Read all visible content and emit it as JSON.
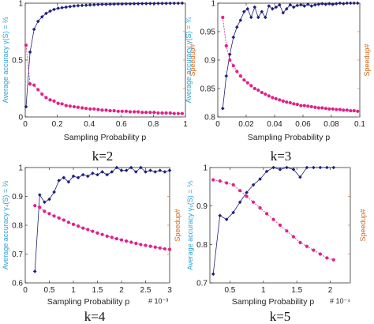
{
  "colors": {
    "accuracy": "#1f1f7a",
    "speedup": "#e0208a",
    "left_axis": "#2a9fd6",
    "right_axis": "#d2691e"
  },
  "chart_data": [
    {
      "type": "line",
      "caption": "k=2",
      "xlabel": "Sampling Probability p",
      "ylabel_left": "Average accuracy γ(S) = ⅔",
      "ylabel_right": "Speedup#",
      "x_exponent": "",
      "xlim": [
        0,
        1
      ],
      "ylim": [
        0,
        1
      ],
      "xticks": [
        0,
        0.2,
        0.4,
        0.6,
        0.8,
        1
      ],
      "xtick_labels": [
        "0",
        "0.2",
        "0.4",
        "0.6",
        "0.8",
        "1"
      ],
      "yticks": [
        0,
        0.5,
        1
      ],
      "ytick_labels": [
        "0",
        "0.5",
        "1"
      ],
      "series": [
        {
          "key": "accuracy",
          "x": [
            0.005,
            0.03,
            0.055,
            0.08,
            0.105,
            0.13,
            0.155,
            0.18,
            0.205,
            0.23,
            0.255,
            0.28,
            0.305,
            0.33,
            0.355,
            0.38,
            0.405,
            0.43,
            0.455,
            0.48,
            0.505,
            0.53,
            0.555,
            0.58,
            0.605,
            0.63,
            0.655,
            0.68,
            0.705,
            0.73,
            0.755,
            0.78,
            0.805,
            0.83,
            0.855,
            0.88,
            0.905,
            0.93,
            0.955,
            0.98
          ],
          "values": [
            0.09,
            0.57,
            0.77,
            0.84,
            0.88,
            0.91,
            0.93,
            0.945,
            0.955,
            0.96,
            0.965,
            0.97,
            0.975,
            0.978,
            0.98,
            0.982,
            0.984,
            0.986,
            0.988,
            0.99,
            0.99,
            0.991,
            0.992,
            0.993,
            0.993,
            0.994,
            0.994,
            0.995,
            0.995,
            0.996,
            0.996,
            0.997,
            0.997,
            0.998,
            0.998,
            0.998,
            0.999,
            0.999,
            0.999,
            1.0
          ]
        },
        {
          "key": "speedup",
          "x": [
            0.005,
            0.03,
            0.055,
            0.08,
            0.105,
            0.13,
            0.155,
            0.18,
            0.205,
            0.23,
            0.255,
            0.28,
            0.305,
            0.33,
            0.355,
            0.38,
            0.405,
            0.43,
            0.455,
            0.48,
            0.505,
            0.53,
            0.555,
            0.58,
            0.605,
            0.63,
            0.655,
            0.68,
            0.705,
            0.73,
            0.755,
            0.78,
            0.805,
            0.83,
            0.855,
            0.88,
            0.905,
            0.93,
            0.955,
            0.98
          ],
          "values": [
            0.63,
            0.29,
            0.28,
            0.24,
            0.2,
            0.17,
            0.15,
            0.14,
            0.12,
            0.115,
            0.1,
            0.095,
            0.09,
            0.085,
            0.08,
            0.075,
            0.07,
            0.07,
            0.065,
            0.06,
            0.06,
            0.055,
            0.055,
            0.05,
            0.05,
            0.05,
            0.045,
            0.045,
            0.045,
            0.04,
            0.04,
            0.04,
            0.04,
            0.035,
            0.035,
            0.035,
            0.035,
            0.03,
            0.03,
            0.03
          ]
        }
      ]
    },
    {
      "type": "line",
      "caption": "k=3",
      "xlabel": "Sampling Probability p",
      "ylabel_left": "Average accuracy γ(S) = ¾",
      "ylabel_right": "Speedup#",
      "x_exponent": "",
      "xlim": [
        0,
        0.1
      ],
      "ylim": [
        0.8,
        1
      ],
      "xticks": [
        0,
        0.02,
        0.04,
        0.06,
        0.08,
        0.1
      ],
      "xtick_labels": [
        "0",
        "0.02",
        "0.04",
        "0.06",
        "0.08",
        "0.1"
      ],
      "yticks": [
        0.8,
        0.85,
        0.9,
        0.95,
        1
      ],
      "ytick_labels": [
        "0.8",
        "0.85",
        "0.9",
        "0.95",
        "1"
      ],
      "series": [
        {
          "key": "accuracy",
          "x": [
            0.0035,
            0.006,
            0.0085,
            0.011,
            0.0135,
            0.016,
            0.0185,
            0.021,
            0.0235,
            0.026,
            0.0285,
            0.031,
            0.0335,
            0.036,
            0.0385,
            0.041,
            0.0435,
            0.046,
            0.0485,
            0.051,
            0.0535,
            0.056,
            0.0585,
            0.061,
            0.0635,
            0.066,
            0.0685,
            0.071,
            0.0735,
            0.076,
            0.0785,
            0.081,
            0.0835,
            0.086,
            0.0885,
            0.091,
            0.0935,
            0.096,
            0.0985
          ],
          "values": [
            0.815,
            0.872,
            0.91,
            0.94,
            0.958,
            0.97,
            0.985,
            0.99,
            0.975,
            0.993,
            0.975,
            0.985,
            0.975,
            0.995,
            0.99,
            0.993,
            0.997,
            0.983,
            0.99,
            0.997,
            0.993,
            0.996,
            0.997,
            0.995,
            0.998,
            0.995,
            0.997,
            0.998,
            0.999,
            0.998,
            0.999,
            0.998,
            0.999,
            1.0,
            0.999,
            1.0,
            1.0,
            1.0,
            1.0
          ]
        },
        {
          "key": "speedup",
          "x": [
            0.0035,
            0.006,
            0.0085,
            0.011,
            0.0135,
            0.016,
            0.0185,
            0.021,
            0.0235,
            0.026,
            0.0285,
            0.031,
            0.0335,
            0.036,
            0.0385,
            0.041,
            0.0435,
            0.046,
            0.0485,
            0.051,
            0.0535,
            0.056,
            0.0585,
            0.061,
            0.0635,
            0.066,
            0.0685,
            0.071,
            0.0735,
            0.076,
            0.0785,
            0.081,
            0.0835,
            0.086,
            0.0885,
            0.091,
            0.0935,
            0.096,
            0.0985
          ],
          "values": [
            0.975,
            0.925,
            0.9,
            0.89,
            0.88,
            0.872,
            0.865,
            0.86,
            0.855,
            0.85,
            0.847,
            0.843,
            0.84,
            0.837,
            0.834,
            0.832,
            0.83,
            0.828,
            0.826,
            0.825,
            0.823,
            0.822,
            0.82,
            0.82,
            0.819,
            0.818,
            0.817,
            0.816,
            0.816,
            0.815,
            0.814,
            0.814,
            0.813,
            0.813,
            0.812,
            0.812,
            0.811,
            0.811,
            0.81
          ]
        }
      ]
    },
    {
      "type": "line",
      "caption": "k=4",
      "xlabel": "Sampling Probability p",
      "ylabel_left": "Average accuracy γ₄(S) = ⅔",
      "ylabel_right": "Speedup#",
      "x_exponent": "# 10⁻³",
      "xlim": [
        0,
        3
      ],
      "ylim": [
        0.6,
        1
      ],
      "xticks": [
        0,
        0.5,
        1,
        1.5,
        2,
        2.5,
        3
      ],
      "xtick_labels": [
        "0",
        "0.5",
        "1",
        "1.5",
        "2",
        "2.5",
        "3"
      ],
      "yticks": [
        0.6,
        0.7,
        0.8,
        0.9,
        1
      ],
      "ytick_labels": [
        "0.6",
        "0.7",
        "0.8",
        "0.9",
        "1"
      ],
      "series": [
        {
          "key": "accuracy",
          "x": [
            0.2,
            0.3,
            0.4,
            0.5,
            0.6,
            0.7,
            0.8,
            0.9,
            1.0,
            1.1,
            1.2,
            1.3,
            1.4,
            1.5,
            1.6,
            1.7,
            1.8,
            1.9,
            2.0,
            2.1,
            2.2,
            2.3,
            2.4,
            2.5,
            2.6,
            2.7,
            2.8,
            2.9,
            3.0
          ],
          "values": [
            0.64,
            0.905,
            0.88,
            0.89,
            0.915,
            0.955,
            0.965,
            0.95,
            0.97,
            0.965,
            0.975,
            0.97,
            0.98,
            0.975,
            0.985,
            0.975,
            0.985,
            1.0,
            0.99,
            0.99,
            1.0,
            0.985,
            1.0,
            0.985,
            0.99,
            0.985,
            0.99,
            0.985,
            0.99
          ]
        },
        {
          "key": "speedup",
          "x": [
            0.2,
            0.3,
            0.4,
            0.5,
            0.6,
            0.7,
            0.8,
            0.9,
            1.0,
            1.1,
            1.2,
            1.3,
            1.4,
            1.5,
            1.6,
            1.7,
            1.8,
            1.9,
            2.0,
            2.1,
            2.2,
            2.3,
            2.4,
            2.5,
            2.6,
            2.7,
            2.8,
            2.9,
            3.0
          ],
          "values": [
            0.868,
            0.862,
            0.848,
            0.84,
            0.832,
            0.825,
            0.818,
            0.81,
            0.803,
            0.797,
            0.79,
            0.785,
            0.779,
            0.773,
            0.768,
            0.762,
            0.758,
            0.753,
            0.749,
            0.745,
            0.741,
            0.737,
            0.733,
            0.73,
            0.727,
            0.724,
            0.721,
            0.718,
            0.716
          ]
        }
      ]
    },
    {
      "type": "line",
      "caption": "k=5",
      "xlabel": "Sampling Probability p",
      "ylabel_left": "Average accuracy γ₅(S) = ⅕",
      "ylabel_right": "Speedup#",
      "x_exponent": "# 10⁻⁴",
      "xlim": [
        0.2,
        2.3
      ],
      "ylim": [
        0.7,
        1
      ],
      "xticks": [
        0.5,
        1,
        1.5,
        2
      ],
      "xtick_labels": [
        "0.5",
        "1",
        "1.5",
        "2"
      ],
      "yticks": [
        0.7,
        0.8,
        0.9,
        1
      ],
      "ytick_labels": [
        "0.7",
        "0.8",
        "0.9",
        "1"
      ],
      "series": [
        {
          "key": "accuracy",
          "x": [
            0.25,
            0.35,
            0.45,
            0.55,
            0.65,
            0.75,
            0.85,
            0.95,
            1.05,
            1.15,
            1.25,
            1.35,
            1.45,
            1.55,
            1.65,
            1.75,
            1.85,
            1.95,
            2.05
          ],
          "values": [
            0.723,
            0.875,
            0.865,
            0.883,
            0.91,
            0.935,
            0.955,
            0.97,
            0.99,
            1.0,
            0.995,
            1.0,
            0.995,
            0.975,
            1.0,
            1.0,
            1.0,
            1.0,
            1.0
          ]
        },
        {
          "key": "speedup",
          "x": [
            0.25,
            0.35,
            0.45,
            0.55,
            0.65,
            0.75,
            0.85,
            0.95,
            1.05,
            1.15,
            1.25,
            1.35,
            1.45,
            1.55,
            1.65,
            1.75,
            1.85,
            1.95,
            2.05
          ],
          "values": [
            0.968,
            0.965,
            0.96,
            0.955,
            0.94,
            0.925,
            0.91,
            0.895,
            0.88,
            0.865,
            0.85,
            0.835,
            0.82,
            0.805,
            0.795,
            0.785,
            0.775,
            0.765,
            0.76
          ]
        }
      ]
    }
  ]
}
